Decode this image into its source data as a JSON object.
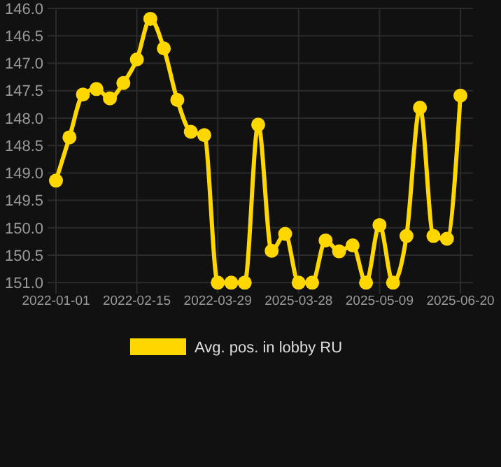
{
  "chart_data": {
    "type": "line",
    "categories": [
      "2022-01-01",
      null,
      null,
      null,
      null,
      null,
      "2022-02-15",
      null,
      null,
      null,
      null,
      null,
      "2022-03-29",
      null,
      null,
      null,
      null,
      null,
      "2025-03-28",
      null,
      null,
      null,
      null,
      null,
      "2025-05-09",
      null,
      null,
      null,
      null,
      null,
      "2025-06-20"
    ],
    "series": [
      {
        "name": "Avg. pos. in lobby RU",
        "color": "#ffd700",
        "values": [
          149.14,
          148.35,
          147.57,
          147.47,
          147.64,
          147.36,
          146.93,
          146.19,
          146.73,
          147.67,
          148.25,
          148.31,
          151.0,
          151.0,
          151.0,
          148.12,
          150.42,
          150.11,
          151.0,
          151.0,
          150.23,
          150.43,
          150.32,
          151.0,
          149.95,
          151.0,
          150.15,
          147.81,
          150.15,
          150.2,
          147.59
        ]
      }
    ],
    "ylim": [
      151.2,
      146.0
    ],
    "yticks": [
      {
        "value": 146,
        "label": "146.0"
      },
      146.5,
      {
        "value": 147,
        "label": "147.0"
      },
      147.5,
      {
        "value": 148,
        "label": "148.0"
      },
      148.5,
      {
        "value": 149,
        "label": "149.0"
      },
      149.5,
      {
        "value": 150,
        "label": "150.0"
      },
      150.5,
      {
        "value": 151,
        "label": "151.0"
      }
    ],
    "grid": true,
    "legend": "bottom",
    "marker": "circle",
    "line_style": "solid"
  }
}
